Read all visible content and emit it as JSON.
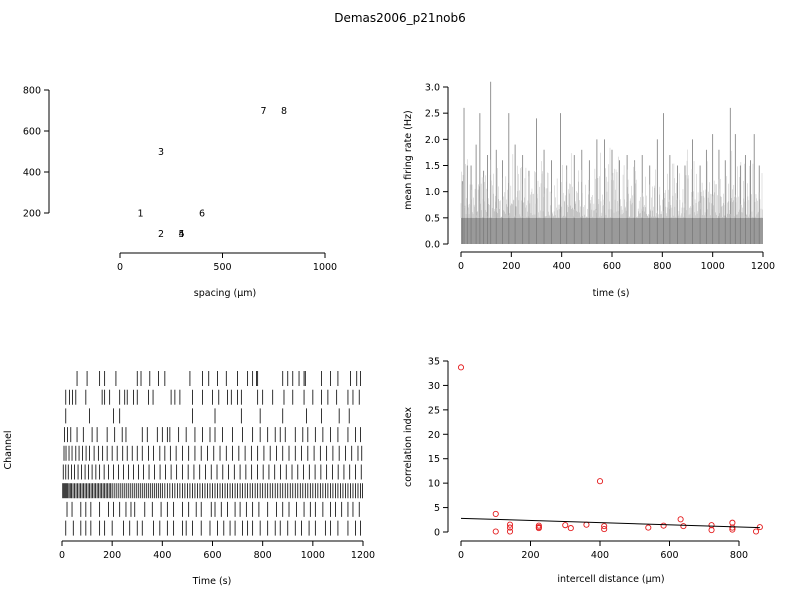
{
  "title": "Demas2006_p21nob6",
  "chart_data": [
    {
      "type": "scatter",
      "panel": "electrode-layout",
      "xlabel": "spacing (µm)",
      "ylabel": "",
      "xlim": [
        0,
        1000
      ],
      "ylim": [
        100,
        800
      ],
      "xticks": [
        0,
        500,
        1000
      ],
      "yticks": [
        200,
        400,
        600,
        800
      ],
      "points": [
        {
          "label": "1",
          "x": 100,
          "y": 200
        },
        {
          "label": "2",
          "x": 200,
          "y": 100
        },
        {
          "label": "3",
          "x": 200,
          "y": 500
        },
        {
          "label": "4",
          "x": 300,
          "y": 100
        },
        {
          "label": "5",
          "x": 300,
          "y": 100
        },
        {
          "label": "6",
          "x": 400,
          "y": 200
        },
        {
          "label": "7",
          "x": 700,
          "y": 700
        },
        {
          "label": "8",
          "x": 800,
          "y": 700
        }
      ]
    },
    {
      "type": "bar",
      "panel": "mean-firing-rate",
      "xlabel": "time (s)",
      "ylabel": "mean firing rate (Hz)",
      "xlim": [
        0,
        1200
      ],
      "ylim": [
        0,
        3
      ],
      "xticks": [
        0,
        200,
        400,
        600,
        800,
        1000,
        1200
      ],
      "yticks": [
        0.0,
        0.5,
        1.0,
        1.5,
        2.0,
        2.5,
        3.0
      ],
      "bin_width_s": 1,
      "baseline_hz": 0.5,
      "peaks": [
        {
          "t": 5,
          "hz": 1.2
        },
        {
          "t": 12,
          "hz": 2.6
        },
        {
          "t": 25,
          "hz": 1.5
        },
        {
          "t": 40,
          "hz": 1.5
        },
        {
          "t": 60,
          "hz": 1.9
        },
        {
          "t": 75,
          "hz": 2.5
        },
        {
          "t": 90,
          "hz": 1.4
        },
        {
          "t": 105,
          "hz": 1.7
        },
        {
          "t": 118,
          "hz": 3.1
        },
        {
          "t": 140,
          "hz": 1.8
        },
        {
          "t": 165,
          "hz": 1.6
        },
        {
          "t": 190,
          "hz": 2.5
        },
        {
          "t": 215,
          "hz": 1.9
        },
        {
          "t": 245,
          "hz": 1.7
        },
        {
          "t": 270,
          "hz": 1.4
        },
        {
          "t": 300,
          "hz": 2.4
        },
        {
          "t": 330,
          "hz": 1.8
        },
        {
          "t": 360,
          "hz": 1.6
        },
        {
          "t": 395,
          "hz": 2.5
        },
        {
          "t": 420,
          "hz": 1.5
        },
        {
          "t": 450,
          "hz": 1.7
        },
        {
          "t": 480,
          "hz": 1.8
        },
        {
          "t": 510,
          "hz": 1.6
        },
        {
          "t": 540,
          "hz": 2.0
        },
        {
          "t": 570,
          "hz": 2.0
        },
        {
          "t": 600,
          "hz": 1.8
        },
        {
          "t": 630,
          "hz": 1.6
        },
        {
          "t": 660,
          "hz": 1.7
        },
        {
          "t": 690,
          "hz": 1.6
        },
        {
          "t": 720,
          "hz": 1.7
        },
        {
          "t": 750,
          "hz": 1.5
        },
        {
          "t": 780,
          "hz": 2.0
        },
        {
          "t": 805,
          "hz": 2.5
        },
        {
          "t": 830,
          "hz": 1.7
        },
        {
          "t": 860,
          "hz": 1.5
        },
        {
          "t": 890,
          "hz": 1.5
        },
        {
          "t": 920,
          "hz": 2.0
        },
        {
          "t": 950,
          "hz": 1.5
        },
        {
          "t": 975,
          "hz": 1.8
        },
        {
          "t": 1000,
          "hz": 2.1
        },
        {
          "t": 1025,
          "hz": 1.8
        },
        {
          "t": 1050,
          "hz": 1.6
        },
        {
          "t": 1070,
          "hz": 2.6
        },
        {
          "t": 1090,
          "hz": 2.1
        },
        {
          "t": 1110,
          "hz": 1.5
        },
        {
          "t": 1130,
          "hz": 1.7
        },
        {
          "t": 1150,
          "hz": 1.6
        },
        {
          "t": 1165,
          "hz": 2.1
        },
        {
          "t": 1185,
          "hz": 1.5
        }
      ]
    },
    {
      "type": "raster",
      "panel": "spike-raster",
      "xlabel": "Time (s)",
      "ylabel": "Channel",
      "xlim": [
        0,
        1200
      ],
      "xticks": [
        0,
        200,
        400,
        600,
        800,
        1000,
        1200
      ],
      "channels": [
        {
          "channel": 1,
          "spike_times": [
            60,
            100,
            150,
            170,
            215,
            300,
            315,
            350,
            385,
            410,
            510,
            560,
            585,
            620,
            655,
            700,
            740,
            760,
            775,
            780,
            880,
            900,
            920,
            945,
            965,
            970,
            1035,
            1070,
            1100,
            1150,
            1175,
            1190
          ]
        },
        {
          "channel": 2,
          "spike_times": [
            15,
            30,
            42,
            55,
            95,
            160,
            170,
            190,
            230,
            250,
            260,
            285,
            300,
            345,
            363,
            435,
            450,
            470,
            520,
            560,
            600,
            625,
            660,
            675,
            700,
            715,
            780,
            800,
            840,
            885,
            920,
            965,
            1000,
            1035,
            1060,
            1095,
            1140,
            1160,
            1185
          ]
        },
        {
          "channel": 3,
          "spike_times": [
            15,
            110,
            205,
            230,
            520,
            610,
            715,
            790,
            880,
            975,
            1035,
            1105,
            1145
          ]
        },
        {
          "channel": 4,
          "spike_times": [
            10,
            22,
            35,
            60,
            85,
            120,
            140,
            180,
            210,
            240,
            255,
            320,
            340,
            380,
            400,
            420,
            430,
            465,
            495,
            530,
            560,
            590,
            610,
            640,
            680,
            720,
            760,
            790,
            820,
            850,
            870,
            890,
            930,
            960,
            980,
            1010,
            1040,
            1070,
            1100,
            1140,
            1170,
            1190
          ]
        },
        {
          "channel": 5,
          "spike_times": [
            8,
            16,
            28,
            40,
            55,
            68,
            82,
            96,
            110,
            128,
            145,
            162,
            180,
            200,
            220,
            242,
            260,
            280,
            300,
            320,
            345,
            365,
            390,
            410,
            432,
            455,
            480,
            505,
            530,
            555,
            580,
            605,
            630,
            655,
            680,
            705,
            730,
            755,
            780,
            805,
            830,
            855,
            880,
            905,
            930,
            955,
            980,
            1005,
            1030,
            1055,
            1080,
            1105,
            1130,
            1155,
            1180,
            1195
          ]
        },
        {
          "channel": 6,
          "spike_times": [
            5,
            15,
            25,
            38,
            50,
            64,
            78,
            92,
            106,
            120,
            135,
            150,
            168,
            185,
            205,
            225,
            245,
            265,
            285,
            305,
            325,
            347,
            369,
            391,
            413,
            435,
            457,
            480,
            503,
            526,
            549,
            572,
            595,
            618,
            641,
            664,
            687,
            710,
            733,
            756,
            779,
            802,
            825,
            848,
            871,
            894,
            917,
            940,
            963,
            986,
            1009,
            1032,
            1055,
            1078,
            1101,
            1124,
            1147,
            1170,
            1193
          ]
        },
        {
          "channel": 7,
          "spike_times": [
            3,
            7,
            11,
            15,
            19,
            23,
            28,
            33,
            38,
            44,
            50,
            56,
            62,
            68,
            74,
            80,
            86,
            92,
            98,
            104,
            110,
            116,
            122,
            128,
            134,
            140,
            146,
            152,
            158,
            164,
            170,
            176,
            182,
            188,
            194,
            200,
            208,
            216,
            224,
            232,
            240,
            248,
            256,
            264,
            272,
            280,
            288,
            296,
            304,
            312,
            320,
            328,
            336,
            344,
            352,
            360,
            368,
            376,
            384,
            392,
            400,
            410,
            420,
            430,
            440,
            450,
            460,
            470,
            480,
            490,
            500,
            510,
            520,
            530,
            540,
            550,
            560,
            570,
            580,
            590,
            600,
            610,
            620,
            630,
            640,
            650,
            660,
            670,
            680,
            690,
            700,
            710,
            720,
            730,
            740,
            750,
            760,
            770,
            780,
            790,
            800,
            810,
            820,
            830,
            840,
            850,
            860,
            870,
            880,
            890,
            900,
            910,
            920,
            930,
            940,
            950,
            960,
            970,
            980,
            990,
            1000,
            1010,
            1020,
            1030,
            1040,
            1050,
            1060,
            1070,
            1080,
            1090,
            1100,
            1110,
            1120,
            1130,
            1140,
            1150,
            1160,
            1170,
            1180,
            1190,
            1198
          ]
        },
        {
          "channel": 8,
          "spike_times": [
            20,
            40,
            75,
            95,
            115,
            150,
            185,
            205,
            230,
            255,
            275,
            290,
            330,
            360,
            395,
            420,
            445,
            480,
            505,
            535,
            555,
            595,
            610,
            635,
            660,
            690,
            710,
            735,
            760,
            785,
            820,
            855,
            880,
            905,
            935,
            965,
            990,
            1010,
            1040,
            1070,
            1090,
            1115,
            1140,
            1160,
            1185
          ]
        },
        {
          "channel": 9,
          "spike_times": [
            15,
            45,
            75,
            95,
            115,
            150,
            170,
            200,
            245,
            270,
            300,
            320,
            365,
            390,
            420,
            445,
            480,
            495,
            520,
            555,
            590,
            620,
            645,
            670,
            690,
            720,
            740,
            760,
            790,
            820,
            850,
            870,
            900,
            930,
            955,
            985,
            1010,
            1050,
            1070,
            1100,
            1140,
            1170,
            1190
          ]
        }
      ]
    },
    {
      "type": "scatter",
      "panel": "correlation-index",
      "xlabel": "intercell distance (µm)",
      "ylabel": "correlation index",
      "xlim": [
        0,
        860
      ],
      "ylim": [
        0,
        35
      ],
      "xticks": [
        0,
        200,
        400,
        600,
        800
      ],
      "yticks": [
        0,
        5,
        10,
        15,
        20,
        25,
        30,
        35
      ],
      "points": [
        {
          "x": 0,
          "y": 33.7
        },
        {
          "x": 100,
          "y": 0.1
        },
        {
          "x": 100,
          "y": 3.7
        },
        {
          "x": 141,
          "y": 0.9
        },
        {
          "x": 141,
          "y": 1.5
        },
        {
          "x": 141,
          "y": 0.1
        },
        {
          "x": 224,
          "y": 0.8
        },
        {
          "x": 224,
          "y": 1.3
        },
        {
          "x": 224,
          "y": 1.0
        },
        {
          "x": 300,
          "y": 1.4
        },
        {
          "x": 316,
          "y": 0.8
        },
        {
          "x": 361,
          "y": 1.5
        },
        {
          "x": 400,
          "y": 10.4
        },
        {
          "x": 412,
          "y": 0.6
        },
        {
          "x": 412,
          "y": 1.2
        },
        {
          "x": 539,
          "y": 0.9
        },
        {
          "x": 583,
          "y": 1.3
        },
        {
          "x": 632,
          "y": 2.6
        },
        {
          "x": 640,
          "y": 1.2
        },
        {
          "x": 721,
          "y": 1.4
        },
        {
          "x": 721,
          "y": 0.4
        },
        {
          "x": 781,
          "y": 1.9
        },
        {
          "x": 781,
          "y": 0.5
        },
        {
          "x": 781,
          "y": 0.9
        },
        {
          "x": 849,
          "y": 0.1
        },
        {
          "x": 860,
          "y": 1.0
        }
      ],
      "fit_line": {
        "x": [
          0,
          860
        ],
        "y": [
          2.8,
          0.9
        ]
      }
    }
  ]
}
